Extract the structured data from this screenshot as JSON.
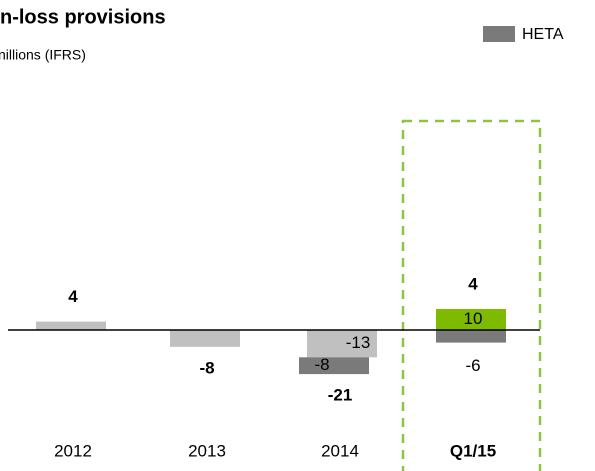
{
  "chart_data": {
    "type": "bar",
    "title": "n-loss provisions",
    "subtitle": "nillions (IFRS)",
    "categories": [
      "2012",
      "2013",
      "2014",
      "Q1/15"
    ],
    "highlight_category": "Q1/15",
    "series": [
      {
        "color": "#c0c0c0",
        "values": [
          4,
          -8,
          -13,
          null
        ],
        "value_labels": [
          null,
          null,
          "-13",
          null
        ]
      },
      {
        "color": "#7dba00",
        "values": [
          null,
          null,
          null,
          10
        ],
        "value_labels": [
          null,
          null,
          null,
          "10"
        ]
      },
      {
        "name": "HETA",
        "color": "#7a7a7a",
        "values": [
          null,
          null,
          -8,
          -6
        ],
        "value_labels": [
          null,
          null,
          "-8",
          "-6"
        ]
      }
    ],
    "totals": [
      4,
      -8,
      -21,
      4
    ]
  }
}
